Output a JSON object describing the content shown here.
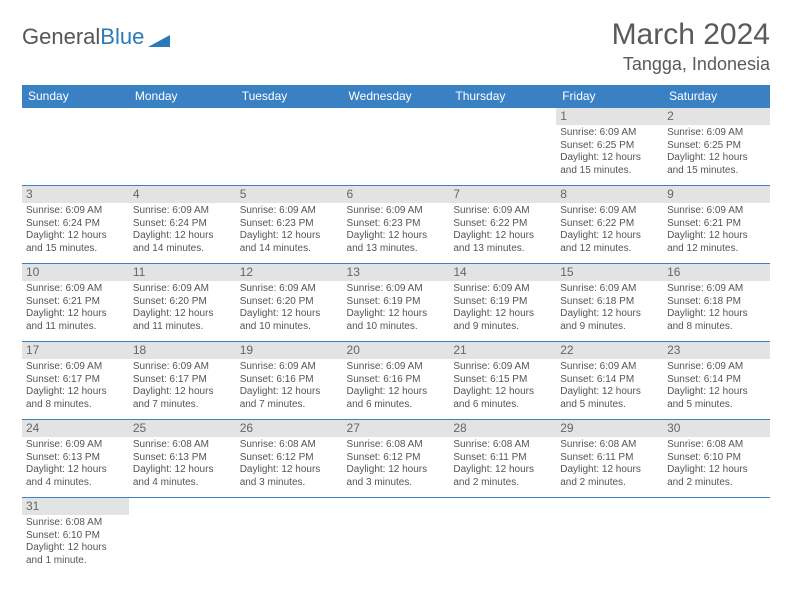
{
  "brand": {
    "part1": "General",
    "part2": "Blue"
  },
  "title": "March 2024",
  "location": "Tangga, Indonesia",
  "colors": {
    "header_bg": "#3a81c4",
    "header_text": "#ffffff",
    "daynum_bg": "#e3e3e3",
    "border": "#3a81c4",
    "text": "#555555",
    "title": "#5a5a5a"
  },
  "day_headers": [
    "Sunday",
    "Monday",
    "Tuesday",
    "Wednesday",
    "Thursday",
    "Friday",
    "Saturday"
  ],
  "weeks": [
    [
      null,
      null,
      null,
      null,
      null,
      {
        "n": "1",
        "sunrise": "6:09 AM",
        "sunset": "6:25 PM",
        "daylight": "12 hours and 15 minutes."
      },
      {
        "n": "2",
        "sunrise": "6:09 AM",
        "sunset": "6:25 PM",
        "daylight": "12 hours and 15 minutes."
      }
    ],
    [
      {
        "n": "3",
        "sunrise": "6:09 AM",
        "sunset": "6:24 PM",
        "daylight": "12 hours and 15 minutes."
      },
      {
        "n": "4",
        "sunrise": "6:09 AM",
        "sunset": "6:24 PM",
        "daylight": "12 hours and 14 minutes."
      },
      {
        "n": "5",
        "sunrise": "6:09 AM",
        "sunset": "6:23 PM",
        "daylight": "12 hours and 14 minutes."
      },
      {
        "n": "6",
        "sunrise": "6:09 AM",
        "sunset": "6:23 PM",
        "daylight": "12 hours and 13 minutes."
      },
      {
        "n": "7",
        "sunrise": "6:09 AM",
        "sunset": "6:22 PM",
        "daylight": "12 hours and 13 minutes."
      },
      {
        "n": "8",
        "sunrise": "6:09 AM",
        "sunset": "6:22 PM",
        "daylight": "12 hours and 12 minutes."
      },
      {
        "n": "9",
        "sunrise": "6:09 AM",
        "sunset": "6:21 PM",
        "daylight": "12 hours and 12 minutes."
      }
    ],
    [
      {
        "n": "10",
        "sunrise": "6:09 AM",
        "sunset": "6:21 PM",
        "daylight": "12 hours and 11 minutes."
      },
      {
        "n": "11",
        "sunrise": "6:09 AM",
        "sunset": "6:20 PM",
        "daylight": "12 hours and 11 minutes."
      },
      {
        "n": "12",
        "sunrise": "6:09 AM",
        "sunset": "6:20 PM",
        "daylight": "12 hours and 10 minutes."
      },
      {
        "n": "13",
        "sunrise": "6:09 AM",
        "sunset": "6:19 PM",
        "daylight": "12 hours and 10 minutes."
      },
      {
        "n": "14",
        "sunrise": "6:09 AM",
        "sunset": "6:19 PM",
        "daylight": "12 hours and 9 minutes."
      },
      {
        "n": "15",
        "sunrise": "6:09 AM",
        "sunset": "6:18 PM",
        "daylight": "12 hours and 9 minutes."
      },
      {
        "n": "16",
        "sunrise": "6:09 AM",
        "sunset": "6:18 PM",
        "daylight": "12 hours and 8 minutes."
      }
    ],
    [
      {
        "n": "17",
        "sunrise": "6:09 AM",
        "sunset": "6:17 PM",
        "daylight": "12 hours and 8 minutes."
      },
      {
        "n": "18",
        "sunrise": "6:09 AM",
        "sunset": "6:17 PM",
        "daylight": "12 hours and 7 minutes."
      },
      {
        "n": "19",
        "sunrise": "6:09 AM",
        "sunset": "6:16 PM",
        "daylight": "12 hours and 7 minutes."
      },
      {
        "n": "20",
        "sunrise": "6:09 AM",
        "sunset": "6:16 PM",
        "daylight": "12 hours and 6 minutes."
      },
      {
        "n": "21",
        "sunrise": "6:09 AM",
        "sunset": "6:15 PM",
        "daylight": "12 hours and 6 minutes."
      },
      {
        "n": "22",
        "sunrise": "6:09 AM",
        "sunset": "6:14 PM",
        "daylight": "12 hours and 5 minutes."
      },
      {
        "n": "23",
        "sunrise": "6:09 AM",
        "sunset": "6:14 PM",
        "daylight": "12 hours and 5 minutes."
      }
    ],
    [
      {
        "n": "24",
        "sunrise": "6:09 AM",
        "sunset": "6:13 PM",
        "daylight": "12 hours and 4 minutes."
      },
      {
        "n": "25",
        "sunrise": "6:08 AM",
        "sunset": "6:13 PM",
        "daylight": "12 hours and 4 minutes."
      },
      {
        "n": "26",
        "sunrise": "6:08 AM",
        "sunset": "6:12 PM",
        "daylight": "12 hours and 3 minutes."
      },
      {
        "n": "27",
        "sunrise": "6:08 AM",
        "sunset": "6:12 PM",
        "daylight": "12 hours and 3 minutes."
      },
      {
        "n": "28",
        "sunrise": "6:08 AM",
        "sunset": "6:11 PM",
        "daylight": "12 hours and 2 minutes."
      },
      {
        "n": "29",
        "sunrise": "6:08 AM",
        "sunset": "6:11 PM",
        "daylight": "12 hours and 2 minutes."
      },
      {
        "n": "30",
        "sunrise": "6:08 AM",
        "sunset": "6:10 PM",
        "daylight": "12 hours and 2 minutes."
      }
    ],
    [
      {
        "n": "31",
        "sunrise": "6:08 AM",
        "sunset": "6:10 PM",
        "daylight": "12 hours and 1 minute."
      },
      null,
      null,
      null,
      null,
      null,
      null
    ]
  ],
  "labels": {
    "sunrise": "Sunrise:",
    "sunset": "Sunset:",
    "daylight": "Daylight:"
  }
}
